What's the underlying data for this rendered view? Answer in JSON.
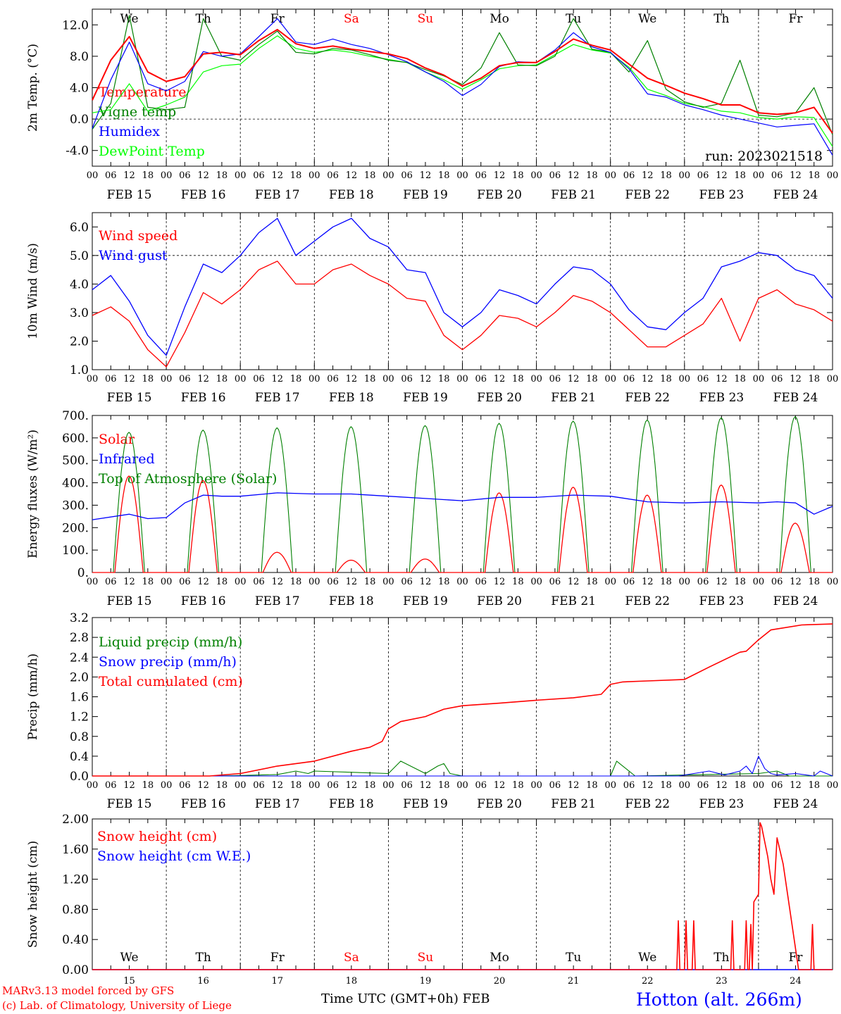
{
  "footer": {
    "credit_line1": "MARv3.13 model forced by GFS",
    "credit_line2": "(c) Lab. of Climatology, University of Liege",
    "xlabel": "Time UTC (GMT+0h) FEB",
    "station": "Hotton (alt. 266m)"
  },
  "chart_data": [
    {
      "type": "line",
      "ylabel": "2m Temp. (°C)",
      "ylim": [
        -6,
        14
      ],
      "yticks": [
        "12.0",
        "8.0",
        "4.0",
        "0.0",
        "-4.0"
      ],
      "ytick_values": [
        12,
        8,
        4,
        0,
        -4
      ],
      "ref_line": 0,
      "run": "run: 2023021518",
      "x_unit": "hours since 2023-02-15 00 UTC",
      "day_names": [
        "We",
        "Th",
        "Fr",
        "Sa",
        "Su",
        "Mo",
        "Tu",
        "We",
        "Th",
        "Fr"
      ],
      "x": [
        0,
        6,
        12,
        18,
        24,
        30,
        36,
        42,
        48,
        54,
        60,
        66,
        72,
        78,
        84,
        90,
        96,
        102,
        108,
        114,
        120,
        126,
        132,
        138,
        144,
        150,
        156,
        162,
        168,
        174,
        180,
        186,
        192,
        198,
        204,
        210,
        216,
        222,
        228,
        234,
        240
      ],
      "series": [
        {
          "name": "Temperature",
          "color": "#ff0000",
          "values": [
            2.4,
            7.5,
            10.5,
            6.0,
            4.8,
            5.4,
            8.3,
            8.5,
            8.2,
            10.0,
            11.4,
            9.6,
            9.0,
            9.3,
            8.9,
            8.6,
            8.3,
            7.7,
            6.5,
            5.6,
            4.2,
            5.2,
            6.8,
            7.2,
            7.2,
            8.6,
            10.2,
            9.4,
            8.8,
            7.0,
            5.2,
            4.3,
            3.3,
            2.6,
            1.8,
            1.8,
            0.8,
            0.6,
            0.8,
            1.5,
            -1.8
          ]
        },
        {
          "name": "Vigne temp",
          "color": "#008000",
          "values": [
            -1.3,
            2.0,
            13.2,
            1.5,
            1.2,
            1.5,
            12.8,
            8.0,
            7.5,
            9.5,
            11.2,
            8.5,
            8.3,
            9.0,
            8.8,
            8.2,
            7.5,
            7.2,
            6.3,
            5.5,
            4.4,
            6.5,
            11.0,
            6.9,
            6.8,
            8.0,
            12.8,
            8.9,
            8.5,
            6.0,
            10.0,
            3.8,
            2.2,
            1.5,
            2.0,
            7.5,
            0.5,
            0.3,
            0.8,
            4.0,
            -2.0
          ]
        },
        {
          "name": "Humidex",
          "color": "#0000ff",
          "values": [
            -1.2,
            5.0,
            9.8,
            4.5,
            3.6,
            4.8,
            8.6,
            8.0,
            8.3,
            10.5,
            12.8,
            9.8,
            9.5,
            10.2,
            9.5,
            9.0,
            8.2,
            7.3,
            6.0,
            4.8,
            3.0,
            4.4,
            6.7,
            7.3,
            7.2,
            8.8,
            11.0,
            9.2,
            8.5,
            6.4,
            3.2,
            2.8,
            1.8,
            1.2,
            0.5,
            0.0,
            -0.5,
            -1.0,
            -0.8,
            -0.6,
            -4.6
          ]
        },
        {
          "name": "DewPoint Temp",
          "color": "#00ff00",
          "values": [
            0.8,
            1.2,
            4.5,
            1.0,
            1.8,
            2.8,
            6.0,
            6.8,
            7.0,
            9.0,
            10.6,
            9.0,
            8.5,
            8.8,
            8.5,
            8.0,
            7.6,
            7.2,
            6.0,
            5.0,
            3.8,
            5.0,
            6.4,
            6.8,
            6.9,
            8.2,
            9.5,
            8.8,
            8.4,
            6.6,
            3.8,
            3.0,
            2.0,
            1.6,
            1.0,
            0.8,
            0.2,
            0.0,
            0.3,
            0.2,
            -3.5
          ]
        }
      ]
    },
    {
      "type": "line",
      "ylabel": "10m Wind (m/s)",
      "ylim": [
        1.0,
        6.5
      ],
      "yticks": [
        "6.0",
        "5.0",
        "4.0",
        "3.0",
        "2.0",
        "1.0"
      ],
      "ytick_values": [
        6,
        5,
        4,
        3,
        2,
        1
      ],
      "ref_line": 5,
      "x": [
        0,
        6,
        12,
        18,
        24,
        30,
        36,
        42,
        48,
        54,
        60,
        66,
        72,
        78,
        84,
        90,
        96,
        102,
        108,
        114,
        120,
        126,
        132,
        138,
        144,
        150,
        156,
        162,
        168,
        174,
        180,
        186,
        192,
        198,
        204,
        210,
        216,
        222,
        228,
        234,
        240
      ],
      "series": [
        {
          "name": "Wind speed",
          "color": "#ff0000",
          "values": [
            2.9,
            3.2,
            2.7,
            1.7,
            1.1,
            2.3,
            3.7,
            3.3,
            3.8,
            4.5,
            4.8,
            4.0,
            4.0,
            4.5,
            4.7,
            4.3,
            4.0,
            3.5,
            3.4,
            2.2,
            1.7,
            2.2,
            2.9,
            2.8,
            2.5,
            3.0,
            3.6,
            3.4,
            3.0,
            2.4,
            1.8,
            1.8,
            2.2,
            2.6,
            3.5,
            2.0,
            3.5,
            3.8,
            3.3,
            3.1,
            2.7
          ]
        },
        {
          "name": "Wind gust",
          "color": "#0000ff",
          "values": [
            3.8,
            4.3,
            3.4,
            2.2,
            1.5,
            3.2,
            4.7,
            4.4,
            5.0,
            5.8,
            6.3,
            5.0,
            5.5,
            6.0,
            6.3,
            5.6,
            5.3,
            4.5,
            4.4,
            3.0,
            2.5,
            3.0,
            3.8,
            3.6,
            3.3,
            4.0,
            4.6,
            4.5,
            4.0,
            3.1,
            2.5,
            2.4,
            3.0,
            3.5,
            4.6,
            4.8,
            5.1,
            5.0,
            4.5,
            4.3,
            3.5
          ]
        }
      ]
    },
    {
      "type": "line",
      "ylabel": "Energy fluxes (W/m²)",
      "ylim": [
        0,
        700
      ],
      "yticks": [
        "700.",
        "600.",
        "500.",
        "400.",
        "300.",
        "200.",
        "100.",
        "0."
      ],
      "ytick_values": [
        700,
        600,
        500,
        400,
        300,
        200,
        100,
        0
      ],
      "solar_peaks": [
        430,
        410,
        90,
        55,
        60,
        355,
        380,
        345,
        390,
        220
      ],
      "toa_peaks": [
        625,
        635,
        645,
        650,
        655,
        665,
        675,
        680,
        690,
        695
      ],
      "ir_x": [
        0,
        12,
        18,
        24,
        30,
        36,
        42,
        48,
        60,
        72,
        84,
        96,
        108,
        120,
        132,
        144,
        156,
        168,
        180,
        192,
        204,
        216,
        222,
        228,
        234,
        240
      ],
      "ir_values": [
        235,
        260,
        240,
        245,
        310,
        345,
        340,
        340,
        355,
        350,
        350,
        340,
        330,
        320,
        335,
        335,
        345,
        340,
        315,
        310,
        315,
        310,
        315,
        310,
        260,
        295
      ],
      "series": [
        {
          "name": "Solar",
          "color": "#ff0000"
        },
        {
          "name": "Infrared",
          "color": "#0000ff"
        },
        {
          "name": "Top of Atmosphere (Solar)",
          "color": "#008000"
        }
      ]
    },
    {
      "type": "line",
      "ylabel": "Precip (mm/h)",
      "ylim": [
        0,
        3.2
      ],
      "yticks": [
        "3.2",
        "2.8",
        "2.4",
        "2.0",
        "1.6",
        "1.2",
        "0.8",
        "0.4",
        "0.0"
      ],
      "ytick_values": [
        3.2,
        2.8,
        2.4,
        2.0,
        1.6,
        1.2,
        0.8,
        0.4,
        0.0
      ],
      "series": [
        {
          "name": "Liquid precip (mm/h)",
          "color": "#008000",
          "x": [
            0,
            40,
            48,
            60,
            66,
            70,
            72,
            96,
            100,
            108,
            112,
            114,
            116,
            120,
            168,
            170,
            172,
            176,
            192,
            216,
            222,
            226,
            240
          ],
          "values": [
            0,
            0,
            0.01,
            0.03,
            0.1,
            0.05,
            0.1,
            0.05,
            0.3,
            0.05,
            0.2,
            0.25,
            0.05,
            0,
            0,
            0.3,
            0.2,
            0,
            0.02,
            0.05,
            0.1,
            0,
            0
          ]
        },
        {
          "name": "Snow precip (mm/h)",
          "color": "#0000ff",
          "x": [
            0,
            190,
            195,
            200,
            205,
            210,
            212,
            214,
            216,
            218,
            220,
            222,
            228,
            234,
            236,
            240
          ],
          "values": [
            0,
            0,
            0.05,
            0.1,
            0.02,
            0.1,
            0.2,
            0.05,
            0.4,
            0.15,
            0.05,
            0.02,
            0.05,
            0,
            0.1,
            0
          ]
        },
        {
          "name": "Total cumulated (cm)",
          "color": "#ff0000",
          "x": [
            0,
            38,
            48,
            60,
            72,
            84,
            90,
            94,
            96,
            100,
            108,
            114,
            120,
            132,
            144,
            156,
            165,
            168,
            172,
            180,
            192,
            200,
            210,
            212,
            216,
            220,
            230,
            240
          ],
          "values": [
            0,
            0,
            0.05,
            0.2,
            0.3,
            0.5,
            0.58,
            0.7,
            0.95,
            1.1,
            1.2,
            1.35,
            1.42,
            1.47,
            1.53,
            1.58,
            1.65,
            1.85,
            1.9,
            1.92,
            1.95,
            2.2,
            2.5,
            2.52,
            2.75,
            2.95,
            3.05,
            3.07
          ]
        }
      ]
    },
    {
      "type": "line",
      "ylabel": "Snow height (cm)",
      "ylim": [
        0,
        2.0
      ],
      "yticks": [
        "2.00",
        "1.60",
        "1.20",
        "0.80",
        "0.40",
        "0.00"
      ],
      "ytick_values": [
        2.0,
        1.6,
        1.2,
        0.8,
        0.4,
        0.0
      ],
      "day_labels": [
        "15",
        "16",
        "17",
        "18",
        "19",
        "20",
        "21",
        "22",
        "23",
        "24"
      ],
      "series": [
        {
          "name": "Snow height (cm)",
          "color": "#ff0000",
          "x": [
            0,
            189.5,
            190,
            190.5,
            192,
            192.5,
            193,
            194.5,
            195,
            195.5,
            207,
            207.5,
            208,
            211.5,
            212,
            212.5,
            213,
            213.5,
            214,
            214.5,
            216,
            216.5,
            217,
            219,
            220,
            221,
            222,
            224,
            229,
            233,
            233.5,
            234,
            234.5,
            240
          ],
          "values": [
            0,
            0,
            0.65,
            0,
            0,
            0.65,
            0,
            0,
            0.65,
            0,
            0,
            0.65,
            0,
            0,
            0.65,
            0,
            0,
            0.6,
            0,
            0.9,
            1.0,
            1.95,
            1.9,
            1.5,
            1.2,
            1.0,
            1.75,
            1.4,
            0,
            0,
            0.6,
            0,
            0,
            0
          ]
        },
        {
          "name": "Snow height (cm W.E.)",
          "color": "#0000ff",
          "x": [
            0,
            240
          ],
          "values": [
            0,
            0
          ]
        }
      ]
    }
  ]
}
